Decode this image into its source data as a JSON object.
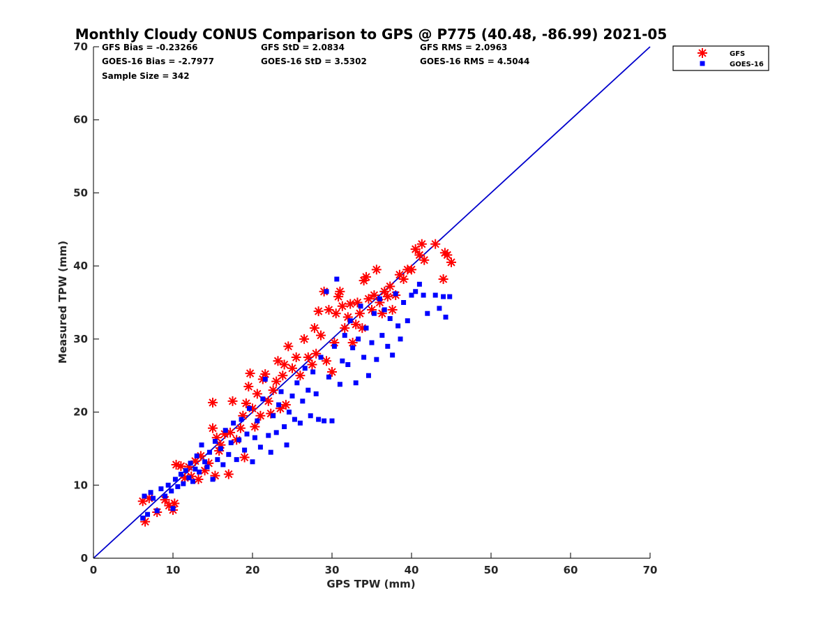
{
  "chart_data": {
    "type": "scatter",
    "title": "Monthly Cloudy CONUS Comparison to GPS @ P775 (40.48, -86.99) 2021-05",
    "xlabel": "GPS TPW (mm)",
    "ylabel": "Measured TPW (mm)",
    "xlim": [
      0,
      70
    ],
    "ylim": [
      0,
      70
    ],
    "xticks": [
      0,
      10,
      20,
      30,
      40,
      50,
      60,
      70
    ],
    "yticks": [
      0,
      10,
      20,
      30,
      40,
      50,
      60,
      70
    ],
    "grid": false,
    "legend_position": "top-right (outside plot)",
    "stats": [
      {
        "text": "GFS Bias = -0.23266"
      },
      {
        "text": "GFS StD = 2.0834"
      },
      {
        "text": "GFS RMS = 2.0963"
      },
      {
        "text": "GOES-16 Bias = -2.7977"
      },
      {
        "text": "GOES-16 StD = 3.5302"
      },
      {
        "text": "GOES-16 RMS = 4.5044"
      },
      {
        "text": "Sample Size = 342"
      }
    ],
    "reference_line": {
      "x": [
        0,
        70
      ],
      "y": [
        0,
        70
      ],
      "color": "#0000cc"
    },
    "series": [
      {
        "name": "GFS",
        "marker": "asterisk",
        "color": "#ff0000",
        "points": [
          [
            6.5,
            5.0
          ],
          [
            6.2,
            7.8
          ],
          [
            7.0,
            8.2
          ],
          [
            8.0,
            6.3
          ],
          [
            9.0,
            8.0
          ],
          [
            9.5,
            7.2
          ],
          [
            10.0,
            6.6
          ],
          [
            10.2,
            7.5
          ],
          [
            10.4,
            12.8
          ],
          [
            11.0,
            12.6
          ],
          [
            11.5,
            11.0
          ],
          [
            12.0,
            12.5
          ],
          [
            12.3,
            11.2
          ],
          [
            12.8,
            13.3
          ],
          [
            13.2,
            10.8
          ],
          [
            13.5,
            14.0
          ],
          [
            14.0,
            12.0
          ],
          [
            14.5,
            13.0
          ],
          [
            15.0,
            21.3
          ],
          [
            15.0,
            17.8
          ],
          [
            15.3,
            11.3
          ],
          [
            15.5,
            16.5
          ],
          [
            15.8,
            14.7
          ],
          [
            16.0,
            15.5
          ],
          [
            16.5,
            17.0
          ],
          [
            17.0,
            11.5
          ],
          [
            17.2,
            17.2
          ],
          [
            17.5,
            21.5
          ],
          [
            18.0,
            16.2
          ],
          [
            18.5,
            17.8
          ],
          [
            18.8,
            19.5
          ],
          [
            19.0,
            13.8
          ],
          [
            19.2,
            21.2
          ],
          [
            19.5,
            23.5
          ],
          [
            19.7,
            25.3
          ],
          [
            20.0,
            20.5
          ],
          [
            20.3,
            18.0
          ],
          [
            20.6,
            22.5
          ],
          [
            21.0,
            19.5
          ],
          [
            21.3,
            24.5
          ],
          [
            21.6,
            25.2
          ],
          [
            22.0,
            21.5
          ],
          [
            22.3,
            19.8
          ],
          [
            22.6,
            23.0
          ],
          [
            23.0,
            24.2
          ],
          [
            23.2,
            27.0
          ],
          [
            23.5,
            20.5
          ],
          [
            23.8,
            25.0
          ],
          [
            24.0,
            26.5
          ],
          [
            24.2,
            21.0
          ],
          [
            24.5,
            29.0
          ],
          [
            25.0,
            26.0
          ],
          [
            25.5,
            27.5
          ],
          [
            26.0,
            25.0
          ],
          [
            26.5,
            30.0
          ],
          [
            27.0,
            27.5
          ],
          [
            27.5,
            26.5
          ],
          [
            27.8,
            31.5
          ],
          [
            28.0,
            28.0
          ],
          [
            28.3,
            33.8
          ],
          [
            28.6,
            30.5
          ],
          [
            29.0,
            36.5
          ],
          [
            29.3,
            27.0
          ],
          [
            29.6,
            34.0
          ],
          [
            30.0,
            25.5
          ],
          [
            30.3,
            29.5
          ],
          [
            30.5,
            33.5
          ],
          [
            30.8,
            35.8
          ],
          [
            31.0,
            36.5
          ],
          [
            31.3,
            34.5
          ],
          [
            31.6,
            31.5
          ],
          [
            32.0,
            33.0
          ],
          [
            32.3,
            34.8
          ],
          [
            32.6,
            29.5
          ],
          [
            33.0,
            32.0
          ],
          [
            33.2,
            35.0
          ],
          [
            33.5,
            33.5
          ],
          [
            33.8,
            31.5
          ],
          [
            34.0,
            38.0
          ],
          [
            34.3,
            38.5
          ],
          [
            34.6,
            35.5
          ],
          [
            35.0,
            34.0
          ],
          [
            35.3,
            36.0
          ],
          [
            35.6,
            39.5
          ],
          [
            36.0,
            35.0
          ],
          [
            36.3,
            33.5
          ],
          [
            36.6,
            36.5
          ],
          [
            37.0,
            35.8
          ],
          [
            37.3,
            37.2
          ],
          [
            37.6,
            34.0
          ],
          [
            38.0,
            36.0
          ],
          [
            38.5,
            38.8
          ],
          [
            39.0,
            38.2
          ],
          [
            39.5,
            39.5
          ],
          [
            40.0,
            39.5
          ],
          [
            40.5,
            42.3
          ],
          [
            41.0,
            41.5
          ],
          [
            41.3,
            43.0
          ],
          [
            41.6,
            40.8
          ],
          [
            43.0,
            43.0
          ],
          [
            44.0,
            38.2
          ],
          [
            44.2,
            41.8
          ],
          [
            44.5,
            41.5
          ],
          [
            45.0,
            40.5
          ]
        ]
      },
      {
        "name": "GOES-16",
        "marker": "square",
        "color": "#0000ff",
        "points": [
          [
            6.2,
            5.5
          ],
          [
            6.4,
            8.5
          ],
          [
            6.8,
            6.0
          ],
          [
            7.2,
            9.0
          ],
          [
            7.5,
            8.2
          ],
          [
            8.0,
            6.5
          ],
          [
            8.5,
            9.5
          ],
          [
            9.0,
            8.5
          ],
          [
            9.4,
            10.0
          ],
          [
            9.8,
            9.2
          ],
          [
            10.0,
            6.8
          ],
          [
            10.3,
            10.8
          ],
          [
            10.6,
            9.8
          ],
          [
            11.0,
            11.5
          ],
          [
            11.3,
            10.2
          ],
          [
            11.6,
            12.0
          ],
          [
            12.0,
            11.0
          ],
          [
            12.2,
            13.0
          ],
          [
            12.5,
            10.5
          ],
          [
            12.8,
            12.2
          ],
          [
            13.0,
            14.0
          ],
          [
            13.3,
            11.8
          ],
          [
            13.6,
            15.5
          ],
          [
            14.0,
            13.2
          ],
          [
            14.3,
            12.5
          ],
          [
            14.6,
            14.5
          ],
          [
            15.0,
            10.8
          ],
          [
            15.3,
            16.0
          ],
          [
            15.6,
            13.5
          ],
          [
            16.0,
            15.0
          ],
          [
            16.3,
            12.8
          ],
          [
            16.6,
            17.5
          ],
          [
            17.0,
            14.2
          ],
          [
            17.3,
            15.8
          ],
          [
            17.6,
            18.5
          ],
          [
            18.0,
            13.5
          ],
          [
            18.3,
            16.2
          ],
          [
            18.6,
            19.0
          ],
          [
            19.0,
            14.8
          ],
          [
            19.3,
            17.0
          ],
          [
            19.6,
            20.5
          ],
          [
            20.0,
            13.2
          ],
          [
            20.3,
            16.5
          ],
          [
            20.6,
            18.8
          ],
          [
            21.0,
            15.2
          ],
          [
            21.3,
            21.8
          ],
          [
            21.6,
            24.5
          ],
          [
            22.0,
            16.8
          ],
          [
            22.3,
            14.5
          ],
          [
            22.6,
            19.5
          ],
          [
            23.0,
            17.2
          ],
          [
            23.3,
            21.0
          ],
          [
            23.6,
            22.8
          ],
          [
            24.0,
            18.0
          ],
          [
            24.3,
            15.5
          ],
          [
            24.6,
            20.0
          ],
          [
            25.0,
            22.2
          ],
          [
            25.3,
            19.0
          ],
          [
            25.6,
            24.0
          ],
          [
            26.0,
            18.5
          ],
          [
            26.3,
            21.5
          ],
          [
            26.6,
            26.0
          ],
          [
            27.0,
            23.0
          ],
          [
            27.3,
            19.5
          ],
          [
            27.6,
            25.5
          ],
          [
            28.0,
            22.5
          ],
          [
            28.3,
            19.0
          ],
          [
            28.6,
            27.5
          ],
          [
            29.0,
            18.8
          ],
          [
            29.3,
            36.5
          ],
          [
            29.6,
            24.8
          ],
          [
            30.0,
            18.8
          ],
          [
            30.3,
            29.0
          ],
          [
            30.6,
            38.2
          ],
          [
            31.0,
            23.8
          ],
          [
            31.3,
            27.0
          ],
          [
            31.6,
            30.5
          ],
          [
            32.0,
            26.5
          ],
          [
            32.3,
            32.5
          ],
          [
            32.6,
            28.8
          ],
          [
            33.0,
            24.0
          ],
          [
            33.3,
            30.0
          ],
          [
            33.6,
            34.5
          ],
          [
            34.0,
            27.5
          ],
          [
            34.3,
            31.5
          ],
          [
            34.6,
            25.0
          ],
          [
            35.0,
            29.5
          ],
          [
            35.3,
            33.5
          ],
          [
            35.6,
            27.2
          ],
          [
            36.0,
            35.5
          ],
          [
            36.3,
            30.5
          ],
          [
            36.6,
            34.0
          ],
          [
            37.0,
            29.0
          ],
          [
            37.3,
            32.8
          ],
          [
            37.6,
            27.8
          ],
          [
            38.0,
            36.2
          ],
          [
            38.3,
            31.8
          ],
          [
            38.6,
            30.0
          ],
          [
            39.0,
            35.0
          ],
          [
            39.5,
            32.5
          ],
          [
            40.0,
            36.0
          ],
          [
            40.5,
            36.5
          ],
          [
            41.0,
            37.5
          ],
          [
            41.5,
            36.0
          ],
          [
            42.0,
            33.5
          ],
          [
            43.0,
            36.0
          ],
          [
            43.5,
            34.2
          ],
          [
            44.0,
            35.8
          ],
          [
            44.3,
            33.0
          ],
          [
            44.8,
            35.8
          ]
        ]
      }
    ]
  }
}
